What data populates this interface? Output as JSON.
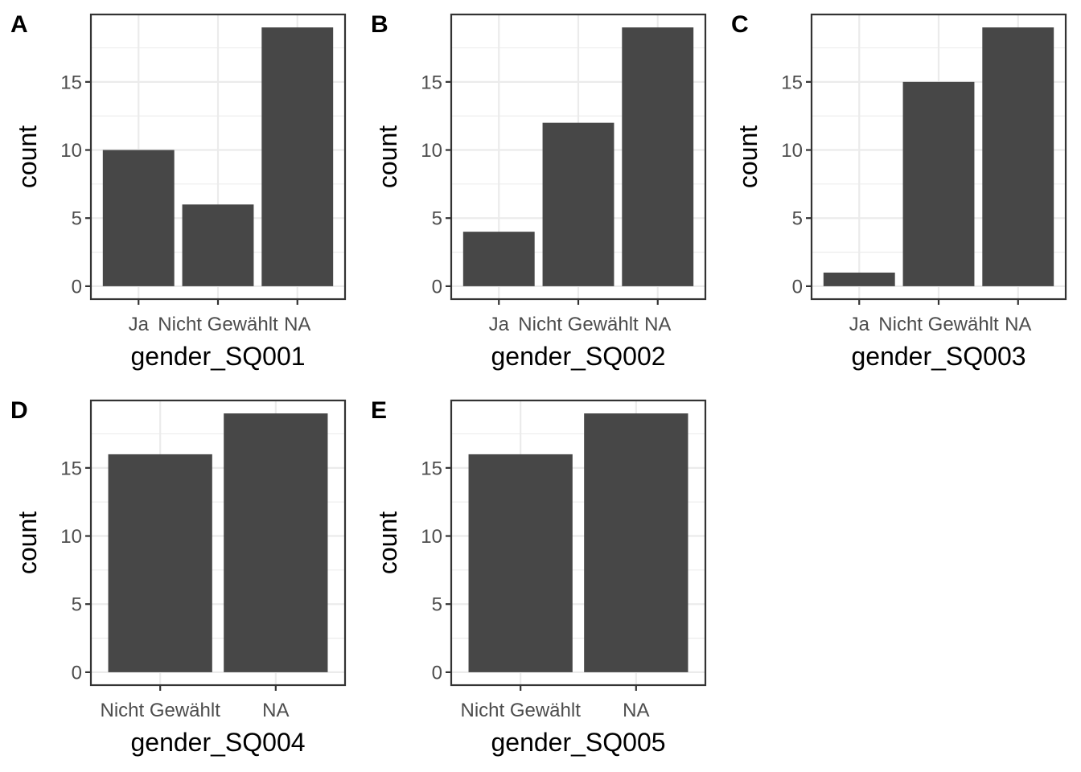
{
  "chart_data": [
    {
      "tag": "A",
      "type": "bar",
      "categories": [
        "Ja",
        "Nicht Gewählt",
        "NA"
      ],
      "values": [
        10,
        6,
        19
      ],
      "xlabel": "gender_SQ001",
      "ylabel": "count",
      "ylim": [
        0,
        19
      ],
      "yticks": [
        0,
        5,
        10,
        15
      ],
      "grid": true,
      "bar_color": "#474747"
    },
    {
      "tag": "B",
      "type": "bar",
      "categories": [
        "Ja",
        "Nicht Gewählt",
        "NA"
      ],
      "values": [
        4,
        12,
        19
      ],
      "xlabel": "gender_SQ002",
      "ylabel": "count",
      "ylim": [
        0,
        19
      ],
      "yticks": [
        0,
        5,
        10,
        15
      ],
      "grid": true,
      "bar_color": "#474747"
    },
    {
      "tag": "C",
      "type": "bar",
      "categories": [
        "Ja",
        "Nicht Gewählt",
        "NA"
      ],
      "values": [
        1,
        15,
        19
      ],
      "xlabel": "gender_SQ003",
      "ylabel": "count",
      "ylim": [
        0,
        19
      ],
      "yticks": [
        0,
        5,
        10,
        15
      ],
      "grid": true,
      "bar_color": "#474747"
    },
    {
      "tag": "D",
      "type": "bar",
      "categories": [
        "Nicht Gewählt",
        "NA"
      ],
      "values": [
        16,
        19
      ],
      "xlabel": "gender_SQ004",
      "ylabel": "count",
      "ylim": [
        0,
        19
      ],
      "yticks": [
        0,
        5,
        10,
        15
      ],
      "grid": true,
      "bar_color": "#474747"
    },
    {
      "tag": "E",
      "type": "bar",
      "categories": [
        "Nicht Gewählt",
        "NA"
      ],
      "values": [
        16,
        19
      ],
      "xlabel": "gender_SQ005",
      "ylabel": "count",
      "ylim": [
        0,
        19
      ],
      "yticks": [
        0,
        5,
        10,
        15
      ],
      "grid": true,
      "bar_color": "#474747"
    }
  ]
}
